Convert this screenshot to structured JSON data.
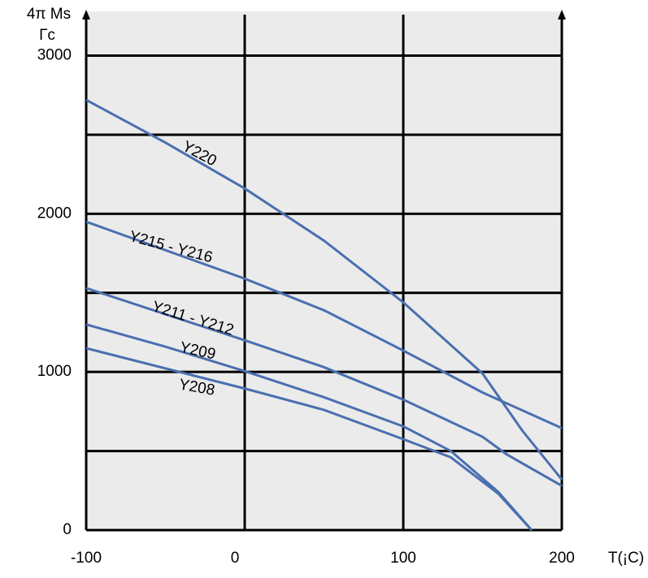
{
  "chart_data": {
    "type": "line",
    "y_label": "4π Ms",
    "y_unit": "Гс",
    "x_label": "T(¡C)",
    "xlim": [
      -100,
      200
    ],
    "xticks": [
      -100,
      0,
      100,
      200
    ],
    "ylim": [
      0,
      3280
    ],
    "yticks": [
      0,
      1000,
      2000,
      3000
    ],
    "minor_yticks": [
      500,
      1500,
      2500
    ],
    "grid": true,
    "series": [
      {
        "name": "Y220",
        "color": "#4a6fb0",
        "x": [
          -100,
          -50,
          0,
          50,
          100,
          150,
          175,
          200
        ],
        "values": [
          2720,
          2450,
          2160,
          1830,
          1440,
          990,
          630,
          320
        ]
      },
      {
        "name": "Y215 - Y216",
        "color": "#4a6fb0",
        "x": [
          -100,
          0,
          50,
          100,
          150,
          200
        ],
        "values": [
          1950,
          1590,
          1390,
          1135,
          870,
          645
        ]
      },
      {
        "name": "Y211 - Y212",
        "color": "#4a6fb0",
        "x": [
          -100,
          0,
          50,
          100,
          150,
          165,
          200
        ],
        "values": [
          1530,
          1200,
          1030,
          825,
          590,
          480,
          280
        ]
      },
      {
        "name": "Y209",
        "color": "#4a6fb0",
        "x": [
          -100,
          -50,
          0,
          50,
          100,
          130,
          160,
          181
        ],
        "values": [
          1300,
          1160,
          1005,
          840,
          656,
          500,
          240,
          0
        ]
      },
      {
        "name": "Y208",
        "color": "#4a6fb0",
        "x": [
          -100,
          0,
          50,
          100,
          130,
          160,
          181
        ],
        "values": [
          1150,
          895,
          760,
          575,
          460,
          230,
          0
        ]
      }
    ]
  }
}
